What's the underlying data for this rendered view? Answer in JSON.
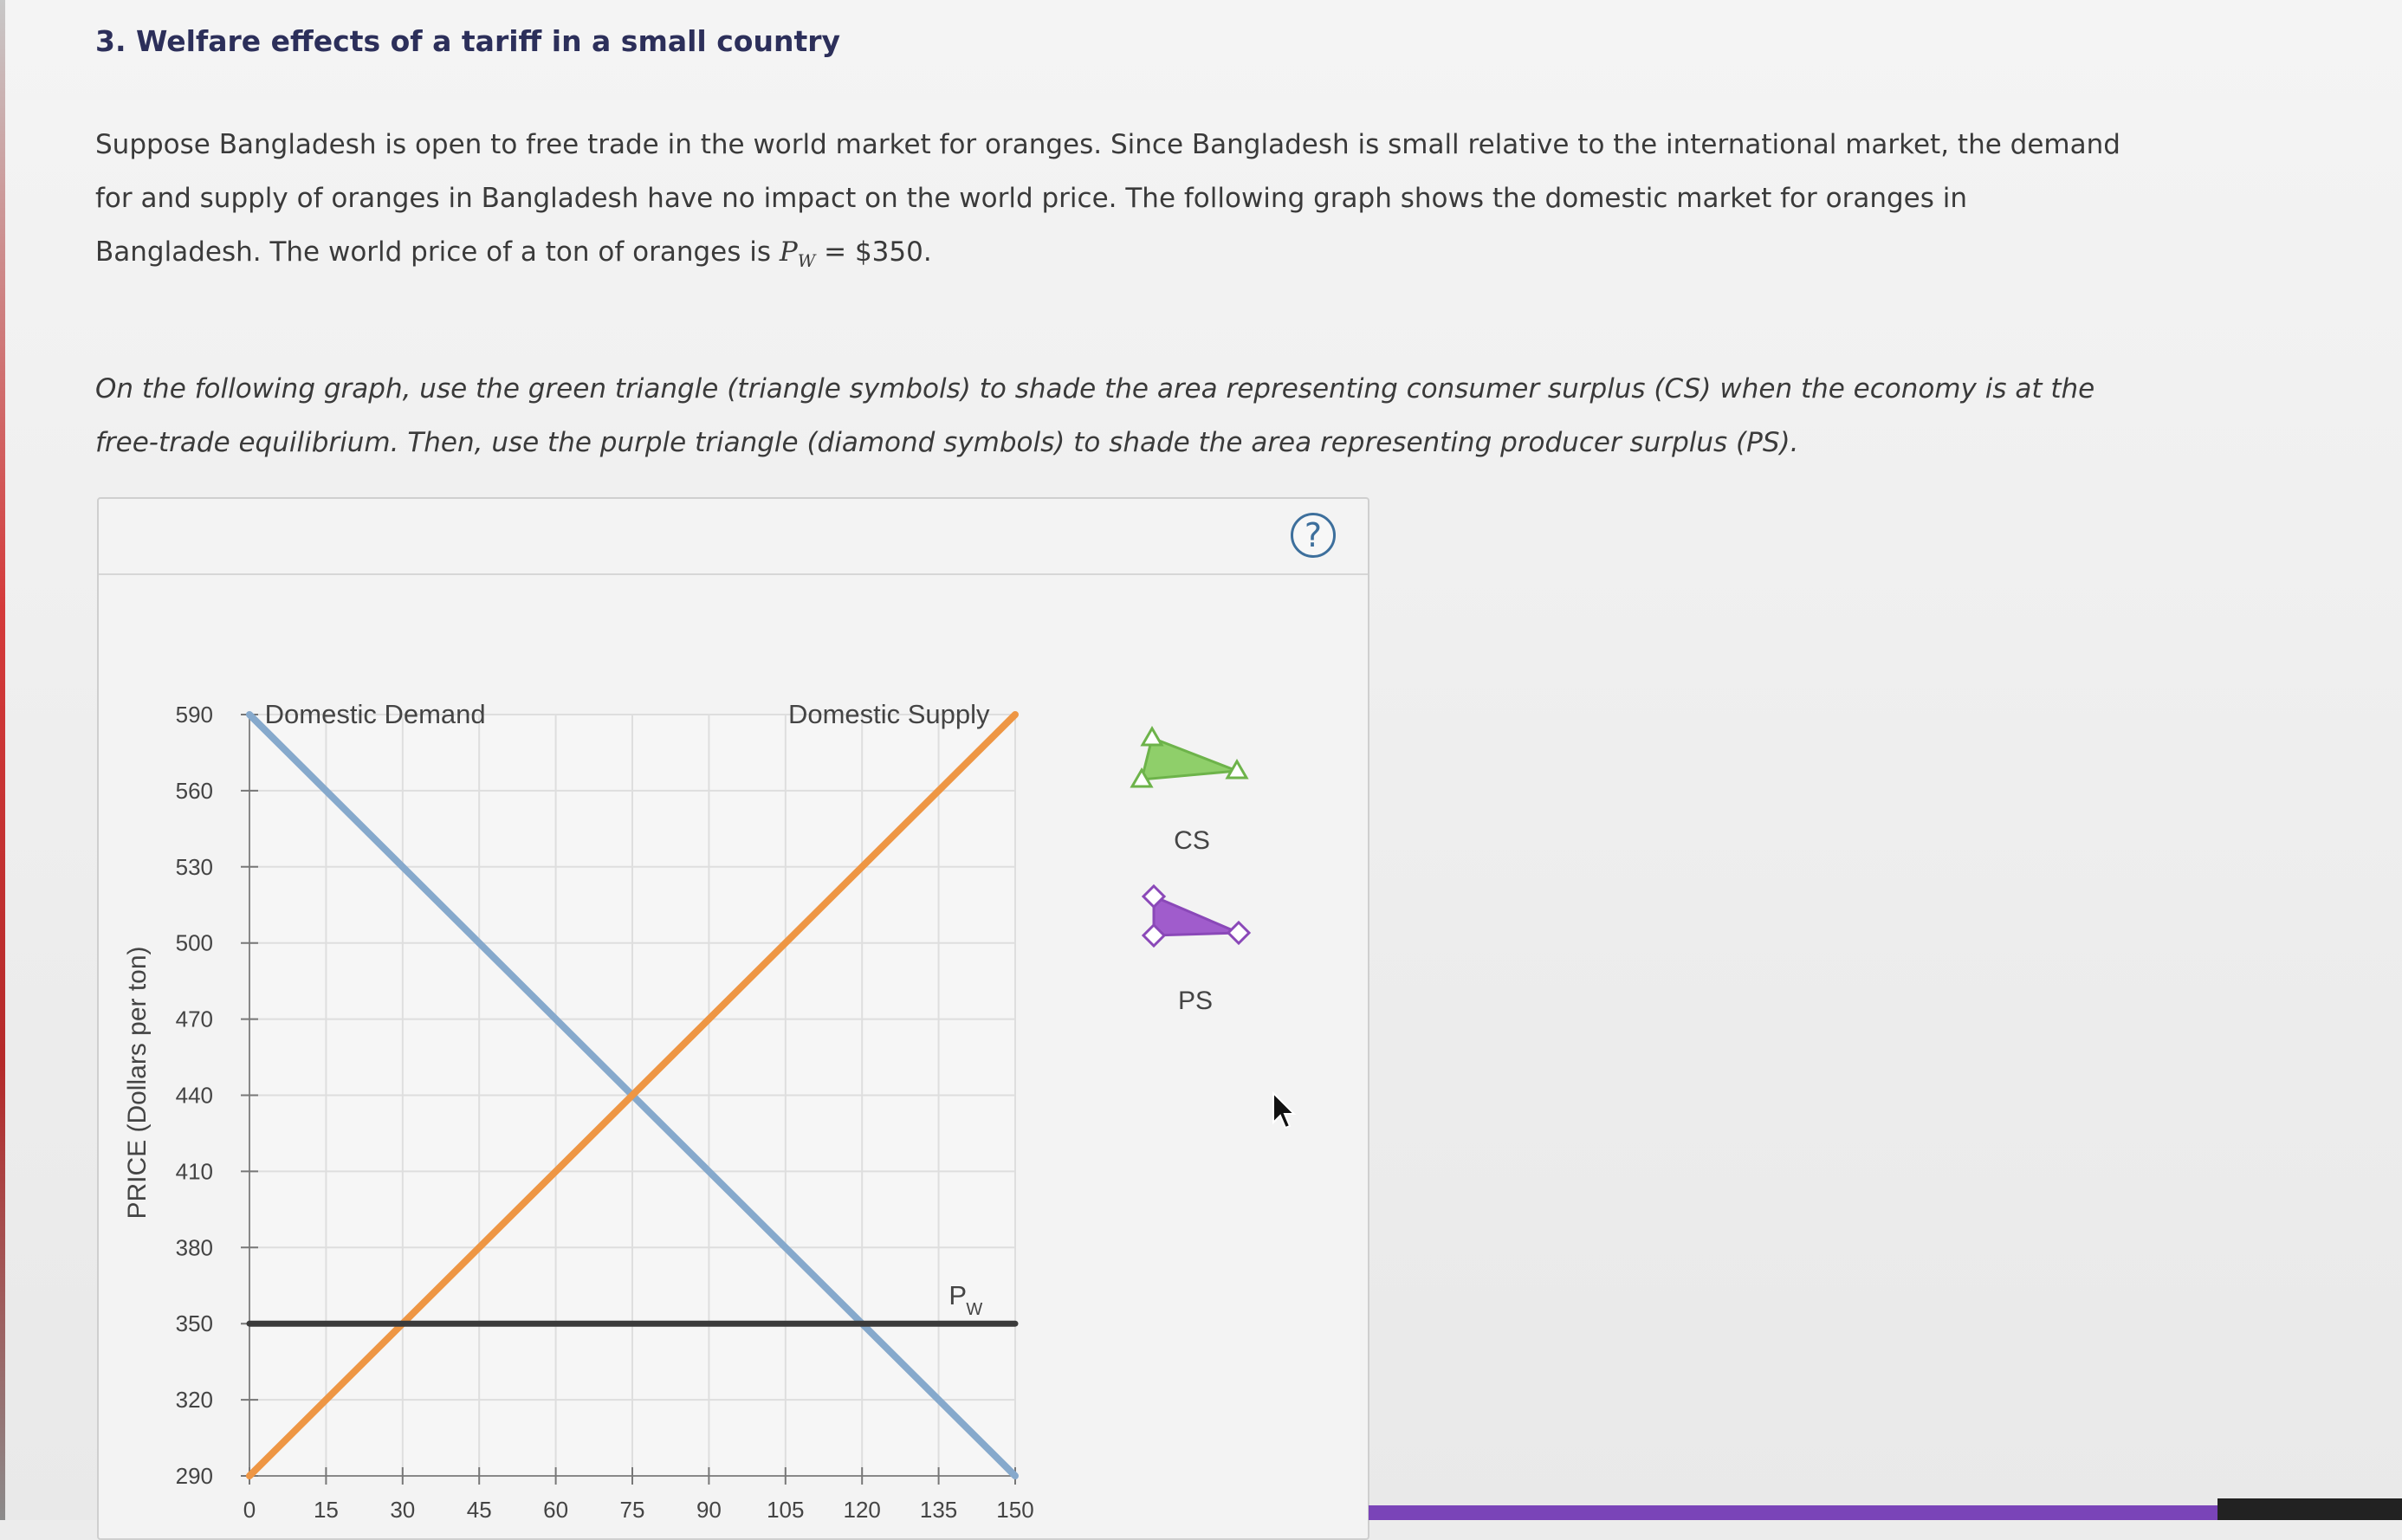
{
  "question": {
    "title": "3. Welfare effects of a tariff in a small country",
    "intro_line1": "Suppose Bangladesh is open to free trade in the world market for oranges. Since Bangladesh is small relative to the international market, the demand",
    "intro_line2": "for and supply of oranges in Bangladesh have no impact on the world price. The following graph shows the domestic market for oranges in",
    "intro_line3_pre": "Bangladesh. The world price of a ton of oranges is ",
    "intro_pw_symbol": "P",
    "intro_pw_sub": "W",
    "intro_line3_post": " = $350.",
    "instruction_line1": "On the following graph, use the green triangle (triangle symbols) to shade the area representing consumer surplus (CS) when the economy is at the",
    "instruction_line2": "free-trade equilibrium. Then, use the purple triangle (diamond symbols) to shade the area representing producer surplus (PS)."
  },
  "help_button": {
    "label": "?"
  },
  "palette": {
    "cs_label": "CS",
    "ps_label": "PS",
    "cs_color": "#8fcf6a",
    "cs_stroke": "#6db34a",
    "ps_color": "#a05ccc",
    "ps_stroke": "#8a48b8"
  },
  "chart_data": {
    "type": "line",
    "ylabel": "PRICE (Dollars per ton)",
    "xlabel": "",
    "xlim": [
      0,
      150
    ],
    "ylim": [
      290,
      590
    ],
    "x_ticks": [
      "0",
      "15",
      "30",
      "45",
      "60",
      "75",
      "90",
      "105",
      "120",
      "135",
      "150"
    ],
    "y_ticks": [
      "590",
      "560",
      "530",
      "500",
      "470",
      "440",
      "410",
      "380",
      "350",
      "320",
      "290"
    ],
    "grid": true,
    "series": [
      {
        "name": "Domestic Demand",
        "color": "#86a9cc",
        "points": [
          [
            0,
            590
          ],
          [
            150,
            290
          ]
        ]
      },
      {
        "name": "Domestic Supply",
        "color": "#ee9644",
        "points": [
          [
            0,
            290
          ],
          [
            150,
            590
          ]
        ]
      },
      {
        "name": "P",
        "name_sub": "W",
        "color": "#3b3b3b",
        "points": [
          [
            0,
            350
          ],
          [
            150,
            350
          ]
        ]
      }
    ]
  }
}
